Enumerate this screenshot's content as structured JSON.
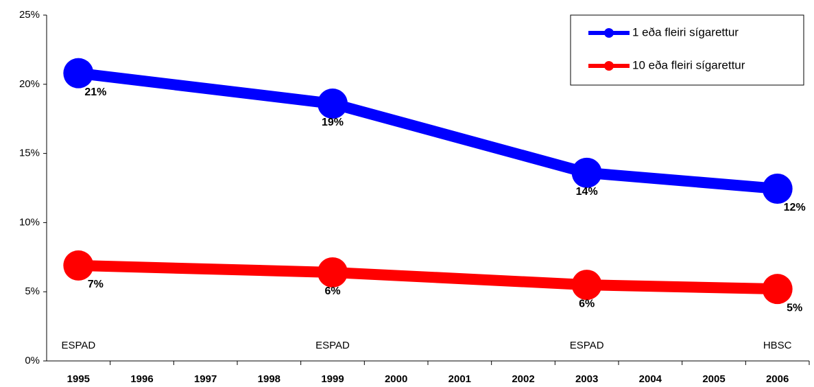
{
  "chart_data": {
    "type": "line",
    "x": [
      1995,
      1999,
      2003,
      2006
    ],
    "series": [
      {
        "name": "1 eða fleiri sígarettur",
        "color": "#0000ff",
        "values": [
          20.8,
          18.6,
          13.6,
          12.45
        ],
        "value_labels": [
          "21%",
          "19%",
          "14%",
          "12%"
        ]
      },
      {
        "name": "10 eða fleiri sígarettur",
        "color": "#ff0000",
        "values": [
          6.9,
          6.4,
          5.5,
          5.2
        ],
        "value_labels": [
          "7%",
          "6%",
          "6%",
          "5%"
        ]
      }
    ],
    "xlim": [
      1994.5,
      2006.5
    ],
    "xticks": [
      1995,
      1996,
      1997,
      1998,
      1999,
      2000,
      2001,
      2002,
      2003,
      2004,
      2005,
      2006
    ],
    "ylim": [
      0,
      25
    ],
    "yticks": [
      {
        "value": 0,
        "label": "0%"
      },
      {
        "value": 5,
        "label": "5%"
      },
      {
        "value": 10,
        "label": "10%"
      },
      {
        "value": 15,
        "label": "15%"
      },
      {
        "value": 20,
        "label": "20%"
      },
      {
        "value": 25,
        "label": "25%"
      }
    ],
    "annotations": [
      {
        "text": "ESPAD",
        "x": 1995
      },
      {
        "text": "ESPAD",
        "x": 1999
      },
      {
        "text": "ESPAD",
        "x": 2003
      },
      {
        "text": "HBSC",
        "x": 2006
      }
    ],
    "legend": "top-right"
  }
}
